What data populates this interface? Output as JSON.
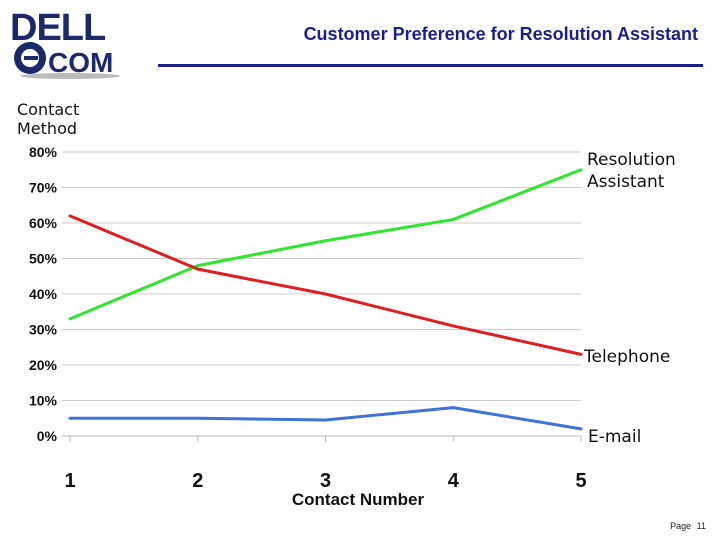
{
  "slide": {
    "title": "Customer Preference for Resolution Assistant",
    "logo": {
      "line1": "DELL",
      "line2": "COM"
    },
    "footer": {
      "page_label": "Page",
      "page_number": "11"
    }
  },
  "colors": {
    "title_blue": "#1a1f8c",
    "resolution_assistant": "#2ee62e",
    "telephone": "#dd1f1f",
    "email": "#3d72dd",
    "grid": "#cccccc"
  },
  "chart_data": {
    "type": "line",
    "x": [
      1,
      2,
      3,
      4,
      5
    ],
    "x_tick_labels": [
      "1",
      "2",
      "3",
      "4",
      "5"
    ],
    "y_tick_labels": [
      "0%",
      "10%",
      "20%",
      "30%",
      "40%",
      "50%",
      "60%",
      "70%",
      "80%"
    ],
    "ylabel": [
      "Contact",
      "Method"
    ],
    "xlabel": "Contact Number",
    "ylim": [
      0,
      80
    ],
    "grid": true,
    "legend": "labels at right end of each line",
    "series": [
      {
        "name": [
          "Resolution",
          "Assistant"
        ],
        "color": "#2ee62e",
        "values": [
          33,
          48,
          55,
          61,
          75
        ]
      },
      {
        "name": [
          "Telephone"
        ],
        "color": "#dd1f1f",
        "values": [
          62,
          47,
          40,
          31,
          23
        ]
      },
      {
        "name": [
          "E-mail"
        ],
        "color": "#3d72dd",
        "values": [
          5,
          5,
          4.5,
          8,
          2
        ]
      }
    ]
  }
}
